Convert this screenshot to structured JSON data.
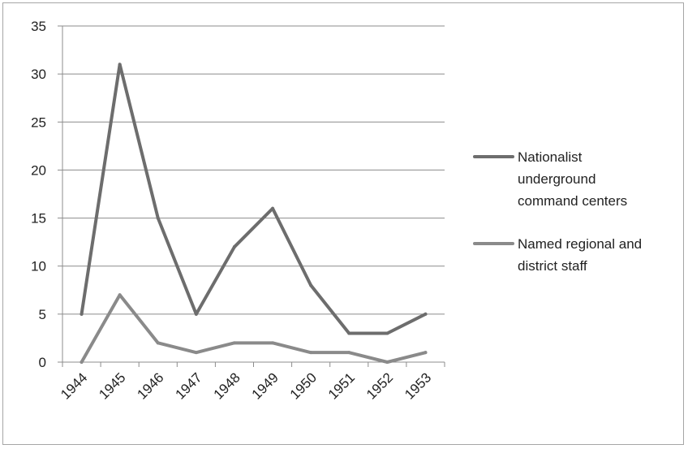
{
  "chart_data": {
    "type": "line",
    "title": "",
    "xlabel": "",
    "ylabel": "",
    "categories": [
      "1944",
      "1945",
      "1946",
      "1947",
      "1948",
      "1949",
      "1950",
      "1951",
      "1952",
      "1953"
    ],
    "ylim": [
      0,
      35
    ],
    "yticks": [
      "0",
      "5",
      "10",
      "15",
      "20",
      "25",
      "30",
      "35"
    ],
    "grid": true,
    "legend_position": "right",
    "series": [
      {
        "name": "Nationalist underground command centers",
        "legend_lines": [
          "Nationalist",
          "underground",
          "command centers"
        ],
        "color": "#6d6d6d",
        "values": [
          5,
          31,
          15,
          5,
          12,
          16,
          8,
          3,
          3,
          5
        ]
      },
      {
        "name": "Named regional and district staff",
        "legend_lines": [
          "Named regional and",
          "district staff"
        ],
        "color": "#8a8a8a",
        "values": [
          0,
          7,
          2,
          1,
          2,
          2,
          1,
          1,
          0,
          1
        ]
      }
    ]
  }
}
